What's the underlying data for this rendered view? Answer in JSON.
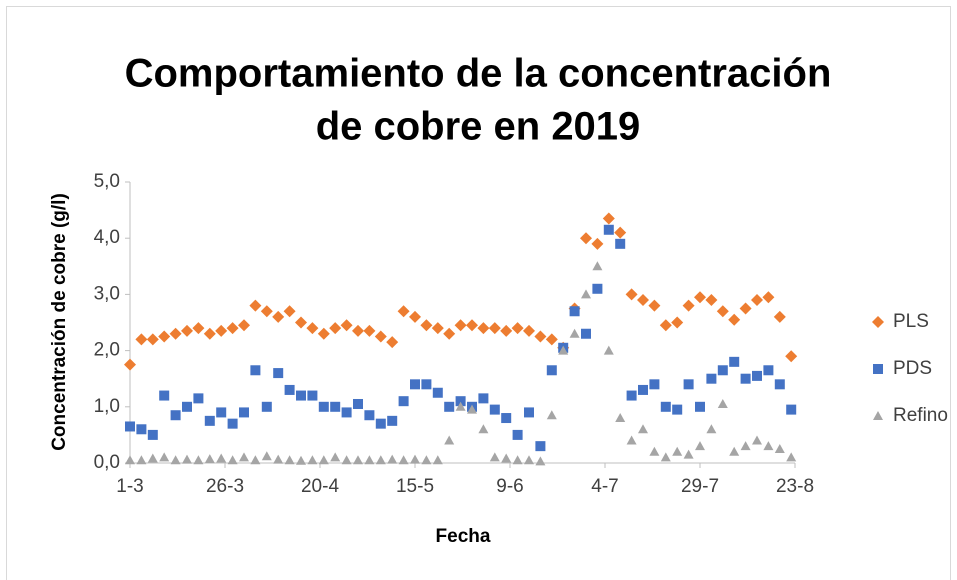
{
  "chart_data": {
    "type": "scatter",
    "title": [
      "Comportamiento de la concentración",
      "de cobre en 2019"
    ],
    "x_label": "Fecha",
    "y_label": "Concentración de cobre (g/l)",
    "x": [
      "1-3",
      "4-3",
      "7-3",
      "10-3",
      "13-3",
      "16-3",
      "19-3",
      "22-3",
      "25-3",
      "28-3",
      "31-3",
      "3-4",
      "6-4",
      "9-4",
      "12-4",
      "15-4",
      "18-4",
      "21-4",
      "24-4",
      "27-4",
      "30-4",
      "3-5",
      "6-5",
      "9-5",
      "12-5",
      "15-5",
      "18-5",
      "21-5",
      "24-5",
      "27-5",
      "30-5",
      "2-6",
      "5-6",
      "8-6",
      "11-6",
      "14-6",
      "17-6",
      "20-6",
      "23-6",
      "26-6",
      "29-6",
      "2-7",
      "5-7",
      "8-7",
      "11-7",
      "14-7",
      "17-7",
      "20-7",
      "23-7",
      "26-7",
      "29-7",
      "1-8",
      "4-8",
      "7-8",
      "10-8",
      "13-8",
      "16-8",
      "19-8",
      "22-8"
    ],
    "xlim": [
      "1-3",
      "23-8"
    ],
    "xticks": [
      "1-3",
      "26-3",
      "20-4",
      "15-5",
      "9-6",
      "4-7",
      "29-7",
      "23-8"
    ],
    "ylim": [
      0,
      5
    ],
    "yticks": [
      {
        "value": 0,
        "label": "0,0"
      },
      {
        "value": 1,
        "label": "1,0"
      },
      {
        "value": 2,
        "label": "2,0"
      },
      {
        "value": 3,
        "label": "3,0"
      },
      {
        "value": 4,
        "label": "4,0"
      },
      {
        "value": 5,
        "label": "5,0"
      }
    ],
    "legend": "right",
    "series": [
      {
        "name": "PLS",
        "color": "#ed7d31",
        "marker": "diamond",
        "values": [
          1.75,
          2.2,
          2.2,
          2.25,
          2.3,
          2.35,
          2.4,
          2.3,
          2.35,
          2.4,
          2.45,
          2.8,
          2.7,
          2.6,
          2.7,
          2.5,
          2.4,
          2.3,
          2.4,
          2.45,
          2.35,
          2.35,
          2.25,
          2.15,
          2.7,
          2.6,
          2.45,
          2.4,
          2.3,
          2.45,
          2.45,
          2.4,
          2.4,
          2.35,
          2.4,
          2.35,
          2.25,
          2.2,
          2.05,
          2.75,
          4.0,
          3.9,
          4.35,
          4.1,
          3.0,
          2.9,
          2.8,
          2.45,
          2.5,
          2.8,
          2.95,
          2.9,
          2.7,
          2.55,
          2.75,
          2.9,
          2.95,
          2.6,
          1.9
        ]
      },
      {
        "name": "PDS",
        "color": "#4472c4",
        "marker": "square",
        "values": [
          0.65,
          0.6,
          0.5,
          1.2,
          0.85,
          1.0,
          1.15,
          0.75,
          0.9,
          0.7,
          0.9,
          1.65,
          1.0,
          1.6,
          1.3,
          1.2,
          1.2,
          1.0,
          1.0,
          0.9,
          1.05,
          0.85,
          0.7,
          0.75,
          1.1,
          1.4,
          1.4,
          1.25,
          1.0,
          1.1,
          1.0,
          1.15,
          0.95,
          0.8,
          0.5,
          0.9,
          0.3,
          1.65,
          2.05,
          2.7,
          2.3,
          3.1,
          4.15,
          3.9,
          1.2,
          1.3,
          1.4,
          1.0,
          0.95,
          1.4,
          1.0,
          1.5,
          1.65,
          1.8,
          1.5,
          1.55,
          1.65,
          1.4,
          0.95
        ]
      },
      {
        "name": "Refino",
        "color": "#a5a5a5",
        "marker": "triangle",
        "values": [
          0.05,
          0.05,
          0.08,
          0.1,
          0.05,
          0.06,
          0.05,
          0.07,
          0.08,
          0.05,
          0.1,
          0.05,
          0.12,
          0.06,
          0.05,
          0.04,
          0.05,
          0.05,
          0.1,
          0.05,
          0.05,
          0.05,
          0.05,
          0.06,
          0.05,
          0.06,
          0.05,
          0.05,
          0.4,
          1.0,
          0.95,
          0.6,
          0.1,
          0.08,
          0.05,
          0.05,
          0.03,
          0.85,
          2.0,
          2.3,
          3.0,
          3.5,
          2.0,
          0.8,
          0.4,
          0.6,
          0.2,
          0.1,
          0.2,
          0.15,
          0.3,
          0.6,
          1.05,
          0.2,
          0.3,
          0.4,
          0.3,
          0.25,
          0.1
        ]
      }
    ]
  }
}
